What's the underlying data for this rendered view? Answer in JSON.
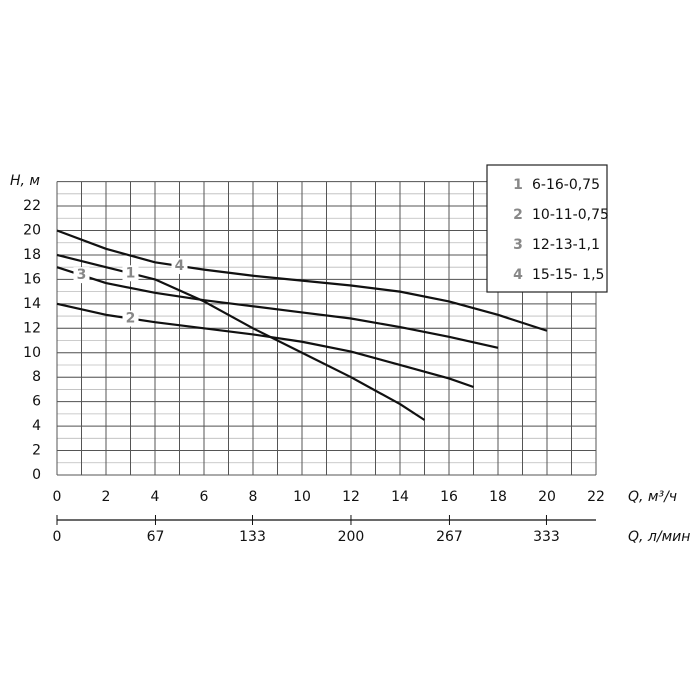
{
  "chart_data": {
    "type": "line",
    "y_label": "H, м",
    "x_label": "Q, м³/ч",
    "x2_label": "Q, л/мин",
    "xlim": [
      0,
      22
    ],
    "xticks": [
      0,
      2,
      4,
      6,
      8,
      10,
      12,
      14,
      16,
      18,
      20,
      22
    ],
    "x2lim": [
      0,
      366.7
    ],
    "x2ticks": [
      0,
      67,
      133,
      200,
      267,
      333
    ],
    "ylim": [
      0,
      24
    ],
    "yticks": [
      0,
      2,
      4,
      6,
      8,
      10,
      12,
      14,
      16,
      18,
      20,
      22
    ],
    "grid": true,
    "legend": "top-right",
    "series": [
      {
        "id": "1",
        "name": "6-16-0,75",
        "color": "#111111",
        "x": [
          0,
          2,
          4,
          6,
          8,
          10,
          12,
          14,
          15
        ],
        "values": [
          18,
          17,
          16,
          14.2,
          12,
          10,
          8,
          5.8,
          4.5
        ]
      },
      {
        "id": "2",
        "name": "10-11-0,75",
        "color": "#111111",
        "x": [
          0,
          2,
          4,
          6,
          8,
          10,
          12,
          14,
          16,
          17
        ],
        "values": [
          14,
          13.1,
          12.5,
          12,
          11.5,
          10.9,
          10.1,
          9,
          7.9,
          7.2
        ]
      },
      {
        "id": "3",
        "name": "12-13-1,1",
        "color": "#111111",
        "x": [
          0,
          2,
          4,
          6,
          8,
          10,
          12,
          14,
          16,
          18
        ],
        "values": [
          17,
          15.7,
          14.9,
          14.3,
          13.8,
          13.3,
          12.8,
          12.1,
          11.3,
          10.4
        ]
      },
      {
        "id": "4",
        "name": "15-15- 1,5",
        "color": "#111111",
        "x": [
          0,
          2,
          4,
          6,
          8,
          10,
          12,
          14,
          16,
          18,
          20
        ],
        "values": [
          20,
          18.5,
          17.4,
          16.8,
          16.3,
          15.9,
          15.5,
          15,
          14.2,
          13.1,
          11.8
        ]
      }
    ]
  }
}
